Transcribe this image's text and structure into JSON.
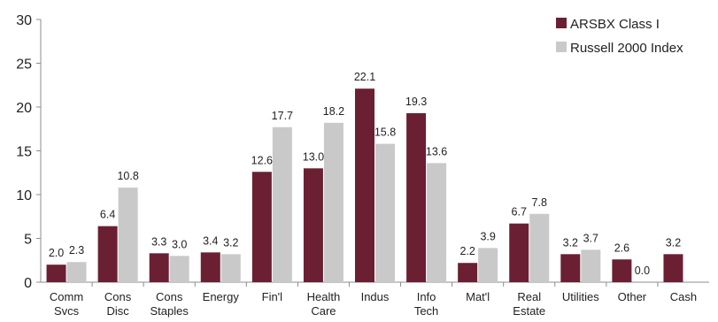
{
  "chart_data": {
    "type": "bar",
    "title": "",
    "xlabel": "",
    "ylabel": "",
    "ylim": [
      0,
      30
    ],
    "yticks": [
      0,
      5,
      10,
      15,
      20,
      25,
      30
    ],
    "grid": false,
    "legend_position": "top-right",
    "categories": [
      [
        "Comm",
        "Svcs"
      ],
      [
        "Cons",
        "Disc"
      ],
      [
        "Cons",
        "Staples"
      ],
      [
        "Energy"
      ],
      [
        "Fin'l"
      ],
      [
        "Health",
        "Care"
      ],
      [
        "Indus"
      ],
      [
        "Info",
        "Tech"
      ],
      [
        "Mat'l"
      ],
      [
        "Real",
        "Estate"
      ],
      [
        "Utilities"
      ],
      [
        "Other"
      ],
      [
        "Cash"
      ]
    ],
    "series": [
      {
        "name": "ARSBX Class I",
        "color": "#6b1f33",
        "values": [
          2.0,
          6.4,
          3.3,
          3.4,
          12.6,
          13.0,
          22.1,
          19.3,
          2.2,
          6.7,
          3.2,
          2.6,
          3.2
        ],
        "labels": [
          "2.0",
          "6.4",
          "3.3",
          "3.4",
          "12.6",
          "13.0",
          "22.1",
          "19.3",
          "2.2",
          "6.7",
          "3.2",
          "2.6",
          "3.2"
        ]
      },
      {
        "name": "Russell 2000 Index",
        "color": "#c9c9c9",
        "values": [
          2.3,
          10.8,
          3.0,
          3.2,
          17.7,
          18.2,
          15.8,
          13.6,
          3.9,
          7.8,
          3.7,
          0.0,
          null
        ],
        "labels": [
          "2.3",
          "10.8",
          "3.0",
          "3.2",
          "17.7",
          "18.2",
          "15.8",
          "13.6",
          "3.9",
          "7.8",
          "3.7",
          "0.0",
          null
        ]
      }
    ]
  }
}
